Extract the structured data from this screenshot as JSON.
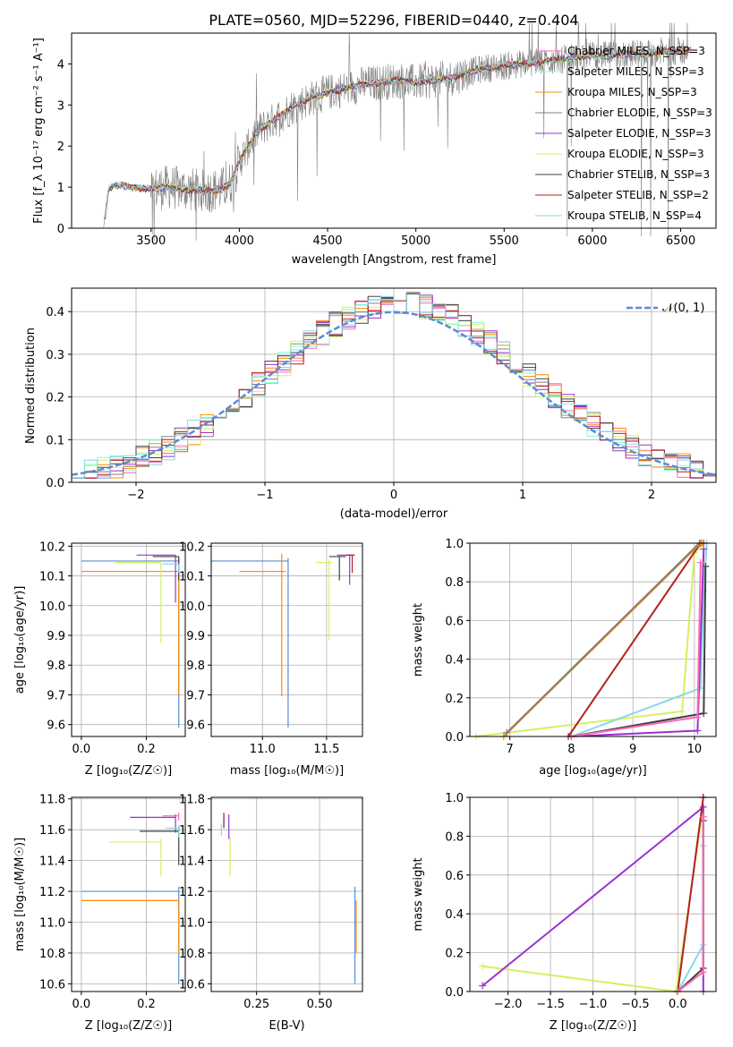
{
  "title": "PLATE=0560, MJD=52296, FIBERID=0440, z=0.404",
  "colors": {
    "chabrier_miles": "#ff69b4",
    "salpeter_miles": "#7fffd4",
    "kroupa_miles": "#ff8c00",
    "chabrier_elodie": "#808080",
    "salpeter_elodie": "#9932cc",
    "kroupa_elodie": "#d4f060",
    "chabrier_stelib": "#404040",
    "salpeter_stelib": "#b22222",
    "kroupa_stelib": "#87d8e8",
    "normal": "#5b8bd9"
  },
  "chart_data": [
    {
      "type": "line",
      "title": "PLATE=0560, MJD=52296, FIBERID=0440, z=0.404",
      "xlabel": "wavelength [Angstrom, rest frame]",
      "ylabel": "Flux [f_λ 10⁻¹⁷ erg cm⁻² s⁻¹ A⁻¹]",
      "xlim": [
        3050,
        6700
      ],
      "ylim": [
        0,
        4.75
      ],
      "xticks": [
        "3500",
        "4000",
        "4500",
        "5000",
        "5500",
        "6000",
        "6500"
      ],
      "yticks": [
        "0",
        "1",
        "2",
        "3",
        "4"
      ],
      "legend": "top-right",
      "series": [
        {
          "name": "Chabrier MILES, N_SSP=3",
          "key": "chabrier_miles"
        },
        {
          "name": "Salpeter MILES, N_SSP=3",
          "key": "salpeter_miles"
        },
        {
          "name": "Kroupa MILES, N_SSP=3",
          "key": "kroupa_miles"
        },
        {
          "name": "Chabrier ELODIE, N_SSP=3",
          "key": "chabrier_elodie"
        },
        {
          "name": "Salpeter ELODIE, N_SSP=3",
          "key": "salpeter_elodie"
        },
        {
          "name": "Kroupa ELODIE, N_SSP=3",
          "key": "kroupa_elodie"
        },
        {
          "name": "Chabrier STELIB, N_SSP=3",
          "key": "chabrier_stelib"
        },
        {
          "name": "Salpeter STELIB, N_SSP=2",
          "key": "salpeter_stelib"
        },
        {
          "name": "Kroupa STELIB, N_SSP=4",
          "key": "kroupa_stelib"
        }
      ],
      "continuum": {
        "x": [
          3230,
          3260,
          3300,
          3400,
          3500,
          3600,
          3700,
          3800,
          3900,
          3950,
          4000,
          4100,
          4200,
          4300,
          4400,
          4500,
          4600,
          4700,
          4800,
          4900,
          5000,
          5100,
          5200,
          5300,
          5400,
          5500,
          5600,
          5700,
          5800,
          5900,
          6000,
          6100,
          6200,
          6300,
          6400,
          6500,
          6550
        ],
        "y": [
          0.0,
          0.95,
          1.05,
          1.0,
          0.95,
          1.0,
          0.95,
          0.9,
          0.95,
          1.1,
          1.6,
          2.35,
          2.65,
          2.95,
          3.15,
          3.3,
          3.4,
          3.5,
          3.55,
          3.6,
          3.55,
          3.6,
          3.65,
          3.8,
          3.9,
          3.95,
          4.0,
          4.05,
          4.1,
          4.15,
          4.2,
          4.2,
          4.25,
          4.25,
          4.3,
          4.3,
          4.35
        ]
      }
    },
    {
      "type": "histogram",
      "xlabel": "(data-model)/error",
      "ylabel": "Normed distribution",
      "xlim": [
        -2.5,
        2.5
      ],
      "ylim": [
        0,
        0.455
      ],
      "xticks": [
        "−2",
        "−1",
        "0",
        "1",
        "2"
      ],
      "yticks": [
        "0.0",
        "0.1",
        "0.2",
        "0.3",
        "0.4"
      ],
      "legend": "top-right",
      "reference": {
        "name": "𝒩(0, 1)",
        "key": "normal"
      },
      "bin_width": 0.1
    },
    {
      "type": "scatter",
      "xlabel": "Z [log₁₀(Z/Z☉)]",
      "ylabel": "age  [log₁₀(age/yr)]",
      "xlim": [
        -0.03,
        0.32
      ],
      "ylim": [
        9.56,
        10.21
      ],
      "xticks": [
        0.0,
        0.2
      ],
      "xticklabels": [
        "0.0",
        "0.2"
      ],
      "yticks": [
        9.6,
        9.7,
        9.8,
        9.9,
        10.0,
        10.1,
        10.2
      ],
      "yticklabels": [
        "9.6",
        "9.7",
        "9.8",
        "9.9",
        "10.0",
        "10.1",
        "10.2"
      ],
      "points": [
        {
          "key": "normal",
          "x": 0.3,
          "y": 10.15,
          "xerr": [
            0.3,
            0.0
          ],
          "yerr": [
            0.56,
            0.01
          ]
        },
        {
          "key": "kroupa_miles",
          "x": 0.3,
          "y": 10.115,
          "xerr": [
            0.3,
            0.0
          ],
          "yerr": [
            0.42,
            0.0
          ]
        },
        {
          "key": "salpeter_elodie",
          "x": 0.29,
          "y": 10.17,
          "xerr": [
            0.12,
            0.0
          ],
          "yerr": [
            0.16,
            0.0
          ]
        },
        {
          "key": "kroupa_elodie",
          "x": 0.245,
          "y": 10.145,
          "xerr": [
            0.14,
            0.0
          ],
          "yerr": [
            0.27,
            0.0
          ]
        },
        {
          "key": "chabrier_stelib",
          "x": 0.3,
          "y": 10.165,
          "xerr": [
            0.08,
            0.0
          ],
          "yerr": [
            0.08,
            0.0
          ]
        },
        {
          "key": "kroupa_stelib",
          "x": 0.3,
          "y": 10.14,
          "xerr": [
            0.05,
            0.0
          ],
          "yerr": [
            0.03,
            0.0
          ]
        }
      ]
    },
    {
      "type": "scatter",
      "xlabel": "mass [log₁₀(M/M☉)]",
      "ylabel": "",
      "xlim": [
        10.6,
        11.78
      ],
      "ylim": [
        9.56,
        10.21
      ],
      "xticks": [
        11.0,
        11.5
      ],
      "xticklabels": [
        "11.0",
        "11.5"
      ],
      "yticks": [
        9.6,
        9.7,
        9.8,
        9.9,
        10.0,
        10.1,
        10.2
      ],
      "yticklabels": [
        "9.6",
        "9.7",
        "9.8",
        "9.9",
        "10.0",
        "10.1",
        "10.2"
      ],
      "points": [
        {
          "key": "normal",
          "x": 11.2,
          "y": 10.15,
          "xerr": [
            0.6,
            0.0
          ],
          "yerr": [
            0.56,
            0.01
          ]
        },
        {
          "key": "kroupa_miles",
          "x": 11.15,
          "y": 10.115,
          "xerr": [
            0.33,
            0.03
          ],
          "yerr": [
            0.42,
            0.06
          ]
        },
        {
          "key": "salpeter_elodie",
          "x": 11.68,
          "y": 10.17,
          "xerr": [
            0.1,
            0.02
          ],
          "yerr": [
            0.1,
            0.0
          ]
        },
        {
          "key": "kroupa_elodie",
          "x": 11.52,
          "y": 10.145,
          "xerr": [
            0.1,
            0.02
          ],
          "yerr": [
            0.26,
            0.01
          ]
        },
        {
          "key": "chabrier_stelib",
          "x": 11.6,
          "y": 10.165,
          "xerr": [
            0.08,
            0.05
          ],
          "yerr": [
            0.08,
            0.0
          ]
        },
        {
          "key": "salpeter_stelib",
          "x": 11.7,
          "y": 10.17,
          "xerr": [
            0.05,
            0.02
          ],
          "yerr": [
            0.06,
            0.0
          ]
        }
      ]
    },
    {
      "type": "line",
      "xlabel": "age  [log₁₀(age/yr)]",
      "ylabel": "mass weight",
      "xlim": [
        6.35,
        10.35
      ],
      "ylim": [
        0,
        1.0
      ],
      "xticks": [
        7,
        8,
        9,
        10
      ],
      "xticklabels": [
        "7",
        "8",
        "9",
        "10"
      ],
      "yticks": [
        0,
        0.2,
        0.4,
        0.6,
        0.8,
        1.0
      ],
      "yticklabels": [
        "0.0",
        "0.2",
        "0.4",
        "0.6",
        "0.8",
        "1.0"
      ],
      "series": [
        {
          "key": "kroupa_elodie",
          "x": [
            6.45,
            9.8,
            10.0,
            10.15
          ],
          "y": [
            0.0,
            0.13,
            0.95,
            1.0
          ]
        },
        {
          "key": "kroupa_stelib",
          "x": [
            8.0,
            10.1,
            10.15,
            10.2
          ],
          "y": [
            0.0,
            0.25,
            0.75,
            1.0
          ]
        },
        {
          "key": "chabrier_stelib",
          "x": [
            8.0,
            10.15,
            10.18
          ],
          "y": [
            0.0,
            0.12,
            0.88
          ]
        },
        {
          "key": "salpeter_elodie",
          "x": [
            8.0,
            10.05,
            10.15
          ],
          "y": [
            0.0,
            0.03,
            0.97
          ]
        },
        {
          "key": "chabrier_miles",
          "x": [
            8.0,
            10.05,
            10.1
          ],
          "y": [
            0.0,
            0.1,
            0.9
          ]
        },
        {
          "key": "salpeter_stelib",
          "x": [
            7.95,
            10.1,
            10.15
          ],
          "y": [
            0.0,
            1.0,
            1.0
          ]
        },
        {
          "key": "kroupa_miles",
          "x": [
            6.9,
            10.1,
            10.12
          ],
          "y": [
            0.0,
            1.0,
            1.0
          ]
        },
        {
          "key": "chabrier_elodie",
          "x": [
            6.95,
            10.08,
            10.15
          ],
          "y": [
            0.02,
            1.0,
            1.0
          ]
        }
      ]
    },
    {
      "type": "scatter",
      "xlabel": "Z [log₁₀(Z/Z☉)]",
      "ylabel": "mass [log₁₀(M/M☉)]",
      "xlim": [
        -0.03,
        0.32
      ],
      "ylim": [
        10.55,
        11.81
      ],
      "xticks": [
        0.0,
        0.2
      ],
      "xticklabels": [
        "0.0",
        "0.2"
      ],
      "yticks": [
        10.6,
        10.8,
        11.0,
        11.2,
        11.4,
        11.6,
        11.8
      ],
      "yticklabels": [
        "10.6",
        "10.8",
        "11.0",
        "11.2",
        "11.4",
        "11.6",
        "11.8"
      ],
      "points": [
        {
          "key": "normal",
          "x": 0.3,
          "y": 11.2,
          "xerr": [
            0.3,
            0.0
          ],
          "yerr": [
            0.6,
            0.03
          ]
        },
        {
          "key": "kroupa_miles",
          "x": 0.3,
          "y": 11.14,
          "xerr": [
            0.3,
            0.0
          ],
          "yerr": [
            0.34,
            0.0
          ]
        },
        {
          "key": "salpeter_elodie",
          "x": 0.29,
          "y": 11.68,
          "xerr": [
            0.14,
            0.0
          ],
          "yerr": [
            0.1,
            0.02
          ]
        },
        {
          "key": "kroupa_elodie",
          "x": 0.245,
          "y": 11.52,
          "xerr": [
            0.16,
            0.0
          ],
          "yerr": [
            0.22,
            0.02
          ]
        },
        {
          "key": "chabrier_stelib",
          "x": 0.3,
          "y": 11.59,
          "xerr": [
            0.12,
            0.0
          ],
          "yerr": [
            0.22,
            0.03
          ]
        },
        {
          "key": "chabrier_miles",
          "x": 0.3,
          "y": 11.69,
          "xerr": [
            0.05,
            0.0
          ],
          "yerr": [
            0.03,
            0.02
          ]
        },
        {
          "key": "kroupa_stelib",
          "x": 0.3,
          "y": 11.61,
          "xerr": [
            0.04,
            0.0
          ],
          "yerr": [
            0.06,
            0.02
          ]
        }
      ]
    },
    {
      "type": "scatter",
      "xlabel": "E(B-V)",
      "ylabel": "",
      "xlim": [
        0.07,
        0.67
      ],
      "ylim": [
        10.55,
        11.81
      ],
      "xticks": [
        0.25,
        0.5
      ],
      "xticklabels": [
        "0.25",
        "0.50"
      ],
      "yticks": [
        10.6,
        10.8,
        11.0,
        11.2,
        11.4,
        11.6,
        11.8
      ],
      "yticklabels": [
        "10.6",
        "10.8",
        "11.0",
        "11.2",
        "11.4",
        "11.6",
        "11.8"
      ],
      "points": [
        {
          "key": "normal",
          "x": 0.64,
          "y": 11.2,
          "xerr": [
            0.0,
            0.0
          ],
          "yerr": [
            0.6,
            0.03
          ]
        },
        {
          "key": "kroupa_miles",
          "x": 0.645,
          "y": 11.14,
          "xerr": [
            0.0,
            0.0
          ],
          "yerr": [
            0.34,
            0.0
          ]
        },
        {
          "key": "salpeter_elodie",
          "x": 0.14,
          "y": 11.68,
          "xerr": [
            0.0,
            0.0
          ],
          "yerr": [
            0.14,
            0.02
          ]
        },
        {
          "key": "kroupa_elodie",
          "x": 0.145,
          "y": 11.52,
          "xerr": [
            0.0,
            0.0
          ],
          "yerr": [
            0.22,
            0.03
          ]
        },
        {
          "key": "chabrier_stelib",
          "x": 0.12,
          "y": 11.66,
          "xerr": [
            0.0,
            0.0
          ],
          "yerr": [
            0.05,
            0.03
          ]
        },
        {
          "key": "kroupa_stelib",
          "x": 0.11,
          "y": 11.62,
          "xerr": [
            0.0,
            0.0
          ],
          "yerr": [
            0.06,
            0.02
          ]
        },
        {
          "key": "salpeter_stelib",
          "x": 0.12,
          "y": 11.68,
          "xerr": [
            0.0,
            0.0
          ],
          "yerr": [
            0.03,
            0.03
          ]
        }
      ]
    },
    {
      "type": "line",
      "xlabel": "Z [log₁₀(Z/Z☉)]",
      "ylabel": "mass weight",
      "xlim": [
        -2.45,
        0.45
      ],
      "ylim": [
        0,
        1.0
      ],
      "xticks": [
        -2.0,
        -1.5,
        -1.0,
        -0.5,
        0.0
      ],
      "xticklabels": [
        "−2.0",
        "−1.5",
        "−1.0",
        "−0.5",
        "0.0"
      ],
      "yticks": [
        0,
        0.2,
        0.4,
        0.6,
        0.8,
        1.0
      ],
      "yticklabels": [
        "0.0",
        "0.2",
        "0.4",
        "0.6",
        "0.8",
        "1.0"
      ],
      "series": [
        {
          "key": "kroupa_elodie",
          "x": [
            -2.3,
            -0.02,
            0.3
          ],
          "y": [
            0.13,
            0.0,
            0.95
          ]
        },
        {
          "key": "salpeter_elodie",
          "x": [
            -2.3,
            0.3,
            0.3
          ],
          "y": [
            0.03,
            0.95,
            0.0
          ]
        },
        {
          "key": "kroupa_stelib",
          "x": [
            0.0,
            0.3,
            0.3
          ],
          "y": [
            0.0,
            0.24,
            0.75
          ]
        },
        {
          "key": "chabrier_stelib",
          "x": [
            0.0,
            0.3,
            0.3
          ],
          "y": [
            0.0,
            0.12,
            0.88
          ]
        },
        {
          "key": "salpeter_stelib",
          "x": [
            0.0,
            0.3,
            0.3
          ],
          "y": [
            0.0,
            1.0,
            1.0
          ]
        },
        {
          "key": "chabrier_miles",
          "x": [
            0.0,
            0.3,
            0.3
          ],
          "y": [
            0.0,
            0.1,
            0.9
          ]
        }
      ]
    }
  ]
}
